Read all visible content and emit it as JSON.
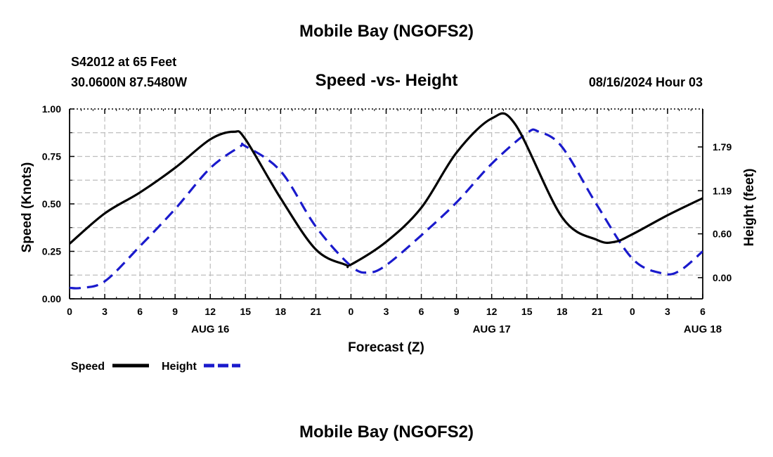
{
  "header": {
    "title": "Mobile Bay (NGOFS2)",
    "station": "S42012 at 65 Feet",
    "coords": "30.0600N  87.5480W",
    "subtitle": "Speed -vs- Height",
    "datetime": "08/16/2024 Hour 03"
  },
  "footer": {
    "title": "Mobile Bay (NGOFS2)"
  },
  "chart_data": {
    "type": "line",
    "xlabel": "Forecast (Z)",
    "ylabel_left": "Speed (Knots)",
    "ylabel_right": "Height (feet)",
    "x_ticks": [
      "0",
      "3",
      "6",
      "9",
      "12",
      "15",
      "18",
      "21",
      "0",
      "3",
      "6",
      "9",
      "12",
      "15",
      "18",
      "21",
      "0",
      "3",
      "6"
    ],
    "day_labels": [
      {
        "label": "AUG 16",
        "hour": 12
      },
      {
        "label": "AUG 17",
        "hour": 36
      },
      {
        "label": "AUG 18",
        "hour": 54
      }
    ],
    "xlim": [
      0,
      54
    ],
    "ylim_left": [
      0,
      1
    ],
    "left_ticks": [
      "0.00",
      "0.25",
      "0.50",
      "0.75",
      "1.00"
    ],
    "ylim_right": [
      -0.29,
      2.31
    ],
    "right_ticks": [
      {
        "label": "0.00",
        "value": 0.0
      },
      {
        "label": "0.60",
        "value": 0.6
      },
      {
        "label": "1.19",
        "value": 1.19
      },
      {
        "label": "1.79",
        "value": 1.79
      }
    ],
    "grid": true,
    "legend": {
      "placement": "bottom-left"
    },
    "series": [
      {
        "name": "Speed",
        "axis": "left",
        "color": "#000000",
        "dash": "solid",
        "x": [
          0,
          3,
          6,
          9,
          12,
          14,
          15,
          18,
          21,
          23.5,
          24,
          27,
          30,
          33,
          36,
          38,
          42,
          45,
          46.5,
          48,
          51,
          54
        ],
        "y": [
          0.29,
          0.45,
          0.56,
          0.69,
          0.84,
          0.88,
          0.84,
          0.53,
          0.26,
          0.18,
          0.18,
          0.3,
          0.48,
          0.77,
          0.95,
          0.92,
          0.43,
          0.31,
          0.3,
          0.34,
          0.44,
          0.53
        ]
      },
      {
        "name": "Height",
        "axis": "right",
        "color": "#1a1acc",
        "dash": "dashed",
        "x": [
          0,
          1,
          3,
          6,
          9,
          12,
          14.5,
          15,
          18,
          21,
          24,
          25.5,
          27,
          30,
          33,
          36,
          39,
          40,
          42,
          45,
          48,
          50.5,
          52,
          54
        ],
        "y": [
          -0.14,
          -0.14,
          -0.05,
          0.43,
          0.94,
          1.5,
          1.79,
          1.8,
          1.46,
          0.7,
          0.16,
          0.07,
          0.17,
          0.58,
          1.03,
          1.56,
          1.98,
          2.0,
          1.79,
          0.99,
          0.26,
          0.06,
          0.09,
          0.36
        ]
      }
    ]
  }
}
